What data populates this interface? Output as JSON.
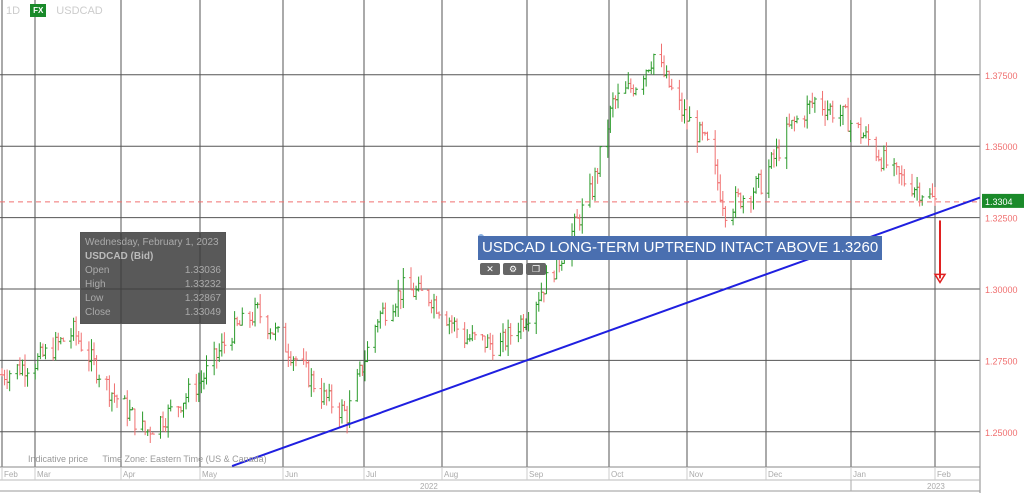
{
  "header": {
    "timeframe": "1D",
    "badge": "FX",
    "symbol": "USDCAD"
  },
  "tooltip": {
    "date": "Wednesday, February 1, 2023",
    "symbol": "USDCAD (Bid)",
    "rows": [
      {
        "label": "Open",
        "value": "1.33036"
      },
      {
        "label": "High",
        "value": "1.33232"
      },
      {
        "label": "Low",
        "value": "1.32867"
      },
      {
        "label": "Close",
        "value": "1.33049"
      }
    ]
  },
  "annotation": {
    "text": "USDCAD LONG-TERM UPTREND INTACT ABOVE 1.3260"
  },
  "footer": {
    "indicative": "Indicative price",
    "timezone": "Time Zone: Eastern Time (US & Canada)"
  },
  "colors": {
    "up": "#2a9a2a",
    "down": "#f07070",
    "trendline": "#1f1fe0",
    "note_bg": "#4a6fb0",
    "last_price_bg": "#1a8a2a"
  },
  "chart_data": {
    "type": "ohlc",
    "y_ticks": [
      "1.25000",
      "1.27500",
      "1.30000",
      "1.32500",
      "1.35000",
      "1.37500"
    ],
    "ylim": [
      1.235,
      1.39
    ],
    "last_price": "1.33049",
    "x_months": [
      "Feb",
      "Mar",
      "Apr",
      "May",
      "Jun",
      "Jul",
      "Aug",
      "Sep",
      "Oct",
      "Nov",
      "Dec",
      "Jan",
      "Feb"
    ],
    "x_years": [
      "2022",
      "2023"
    ],
    "weekly_close_approx": {
      "dates": [
        "2022-02-01",
        "2022-02-15",
        "2022-03-01",
        "2022-03-15",
        "2022-03-29",
        "2022-04-08",
        "2022-04-20",
        "2022-05-02",
        "2022-05-12",
        "2022-05-25",
        "2022-06-07",
        "2022-06-16",
        "2022-06-28",
        "2022-07-08",
        "2022-07-19",
        "2022-08-01",
        "2022-08-15",
        "2022-08-26",
        "2022-09-08",
        "2022-09-20",
        "2022-09-28",
        "2022-10-07",
        "2022-10-14",
        "2022-10-25",
        "2022-11-04",
        "2022-11-11",
        "2022-11-25",
        "2022-12-06",
        "2022-12-16",
        "2022-12-28",
        "2023-01-06",
        "2023-01-16",
        "2023-01-26",
        "2023-02-01"
      ],
      "values": [
        1.27,
        1.275,
        1.285,
        1.265,
        1.25,
        1.257,
        1.268,
        1.285,
        1.292,
        1.278,
        1.262,
        1.256,
        1.29,
        1.3,
        1.297,
        1.283,
        1.28,
        1.292,
        1.312,
        1.335,
        1.365,
        1.372,
        1.382,
        1.362,
        1.35,
        1.328,
        1.337,
        1.356,
        1.366,
        1.36,
        1.352,
        1.34,
        1.335,
        1.3305
      ]
    },
    "trendline": {
      "from": [
        "2022-05-02",
        1.238
      ],
      "to": [
        "2023-02-07",
        1.332
      ]
    },
    "horizontal_line": 1.3305,
    "arrow": {
      "date": "2023-02-01",
      "from": 1.324,
      "to": 1.303,
      "direction": "down"
    }
  }
}
